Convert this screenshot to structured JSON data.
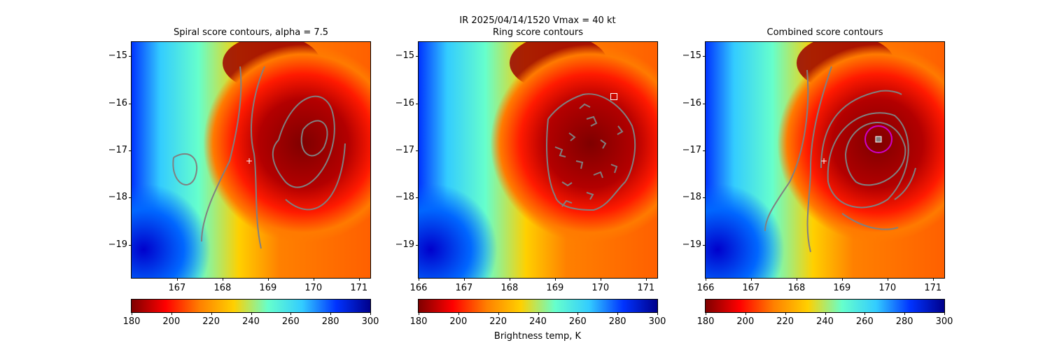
{
  "suptitle": "IR  2025/04/14/1520    Vmax = 40 kt",
  "colorbar_label": "Brightness temp, K",
  "chart_data": [
    {
      "type": "heatmap",
      "title": "Spiral score contours, alpha =  7.5",
      "xlim": [
        166.0,
        171.25
      ],
      "ylim": [
        -19.7,
        -14.7
      ],
      "xticks": [
        167,
        168,
        169,
        170,
        171
      ],
      "yticks": [
        -15,
        -16,
        -17,
        -18,
        -19
      ],
      "colorbar": {
        "min": 180,
        "max": 300,
        "ticks": [
          180,
          200,
          220,
          240,
          260,
          280,
          300
        ],
        "colormap": "jet_r"
      },
      "contour_color": "#808080",
      "marker": {
        "type": "plus",
        "x": 168.62,
        "y": -17.22,
        "color": "#ffffff"
      }
    },
    {
      "type": "heatmap",
      "title": "Ring score contours",
      "xlim": [
        166.0,
        171.25
      ],
      "ylim": [
        -19.7,
        -14.7
      ],
      "xticks": [
        166,
        167,
        168,
        169,
        170,
        171
      ],
      "yticks": [
        -15,
        -16,
        -17,
        -18,
        -19
      ],
      "colorbar": {
        "min": 180,
        "max": 300,
        "ticks": [
          180,
          200,
          220,
          240,
          260,
          280,
          300
        ],
        "colormap": "jet_r"
      },
      "contour_color": "#808080",
      "marker": {
        "type": "square",
        "x": 170.28,
        "y": -15.86,
        "color": "#ffffff"
      }
    },
    {
      "type": "heatmap",
      "title": "Combined score contours",
      "xlim": [
        166.0,
        171.25
      ],
      "ylim": [
        -19.7,
        -14.7
      ],
      "xticks": [
        166,
        167,
        168,
        169,
        170,
        171
      ],
      "yticks": [
        -15,
        -16,
        -17,
        -18,
        -19
      ],
      "colorbar": {
        "min": 180,
        "max": 300,
        "ticks": [
          180,
          200,
          220,
          240,
          260,
          280,
          300
        ],
        "colormap": "jet_r"
      },
      "contour_color": "#808080",
      "markers": [
        {
          "type": "plus",
          "x": 168.62,
          "y": -17.22,
          "color": "#ffffff"
        },
        {
          "type": "square",
          "x": 169.78,
          "y": -16.78,
          "color": "#ffffff"
        },
        {
          "type": "circle",
          "x": 169.78,
          "y": -16.78,
          "color": "#cc00cc"
        }
      ]
    }
  ]
}
